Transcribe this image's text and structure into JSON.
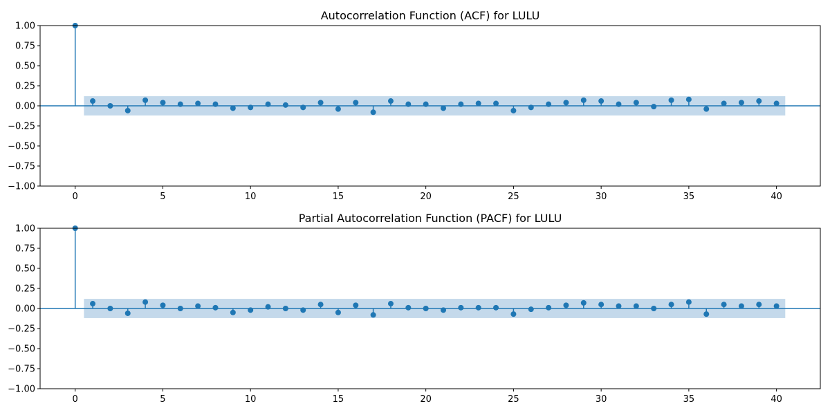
{
  "chart_data": [
    {
      "type": "stem",
      "title": "Autocorrelation Function (ACF) for LULU",
      "xlabel": "",
      "ylabel": "",
      "xlim": [
        -2,
        42.5
      ],
      "ylim": [
        -1.0,
        1.0
      ],
      "x_ticks": [
        "0",
        "5",
        "10",
        "15",
        "20",
        "25",
        "30",
        "35",
        "40"
      ],
      "y_ticks": [
        "1.00",
        "0.75",
        "0.50",
        "0.25",
        "0.00",
        "−0.25",
        "−0.50",
        "−0.75",
        "−1.00"
      ],
      "lags": [
        0,
        1,
        2,
        3,
        4,
        5,
        6,
        7,
        8,
        9,
        10,
        11,
        12,
        13,
        14,
        15,
        16,
        17,
        18,
        19,
        20,
        21,
        22,
        23,
        24,
        25,
        26,
        27,
        28,
        29,
        30,
        31,
        32,
        33,
        34,
        35,
        36,
        37,
        38,
        39,
        40
      ],
      "values": [
        1.0,
        0.06,
        0.0,
        -0.06,
        0.07,
        0.04,
        0.02,
        0.03,
        0.02,
        -0.03,
        -0.02,
        0.02,
        0.01,
        -0.02,
        0.04,
        -0.04,
        0.04,
        -0.08,
        0.06,
        0.02,
        0.02,
        -0.03,
        0.02,
        0.03,
        0.03,
        -0.06,
        -0.02,
        0.02,
        0.04,
        0.07,
        0.06,
        0.02,
        0.04,
        -0.01,
        0.07,
        0.08,
        -0.04,
        0.03,
        0.04,
        0.06,
        0.03
      ],
      "confidence_band": {
        "lag_start": 0.5,
        "lag_end": 40.5,
        "lower": -0.12,
        "upper": 0.12
      },
      "grid": false,
      "legend": "none",
      "colors": {
        "series": "#1f77b4",
        "band": "#b5cfe6",
        "axis_line": "#1f77b4"
      }
    },
    {
      "type": "stem",
      "title": "Partial Autocorrelation Function (PACF) for LULU",
      "xlabel": "",
      "ylabel": "",
      "xlim": [
        -2,
        42.5
      ],
      "ylim": [
        -1.0,
        1.0
      ],
      "x_ticks": [
        "0",
        "5",
        "10",
        "15",
        "20",
        "25",
        "30",
        "35",
        "40"
      ],
      "y_ticks": [
        "1.00",
        "0.75",
        "0.50",
        "0.25",
        "0.00",
        "−0.25",
        "−0.50",
        "−0.75",
        "−1.00"
      ],
      "lags": [
        0,
        1,
        2,
        3,
        4,
        5,
        6,
        7,
        8,
        9,
        10,
        11,
        12,
        13,
        14,
        15,
        16,
        17,
        18,
        19,
        20,
        21,
        22,
        23,
        24,
        25,
        26,
        27,
        28,
        29,
        30,
        31,
        32,
        33,
        34,
        35,
        36,
        37,
        38,
        39,
        40
      ],
      "values": [
        1.0,
        0.06,
        0.0,
        -0.06,
        0.08,
        0.04,
        0.0,
        0.03,
        0.01,
        -0.05,
        -0.02,
        0.02,
        0.0,
        -0.02,
        0.05,
        -0.05,
        0.04,
        -0.08,
        0.06,
        0.01,
        0.0,
        -0.02,
        0.01,
        0.01,
        0.01,
        -0.07,
        -0.01,
        0.01,
        0.04,
        0.07,
        0.05,
        0.03,
        0.03,
        0.0,
        0.05,
        0.08,
        -0.07,
        0.05,
        0.03,
        0.05,
        0.03
      ],
      "confidence_band": {
        "lag_start": 0.5,
        "lag_end": 40.5,
        "lower": -0.12,
        "upper": 0.12
      },
      "grid": false,
      "legend": "none",
      "colors": {
        "series": "#1f77b4",
        "band": "#b5cfe6",
        "axis_line": "#1f77b4"
      }
    }
  ]
}
